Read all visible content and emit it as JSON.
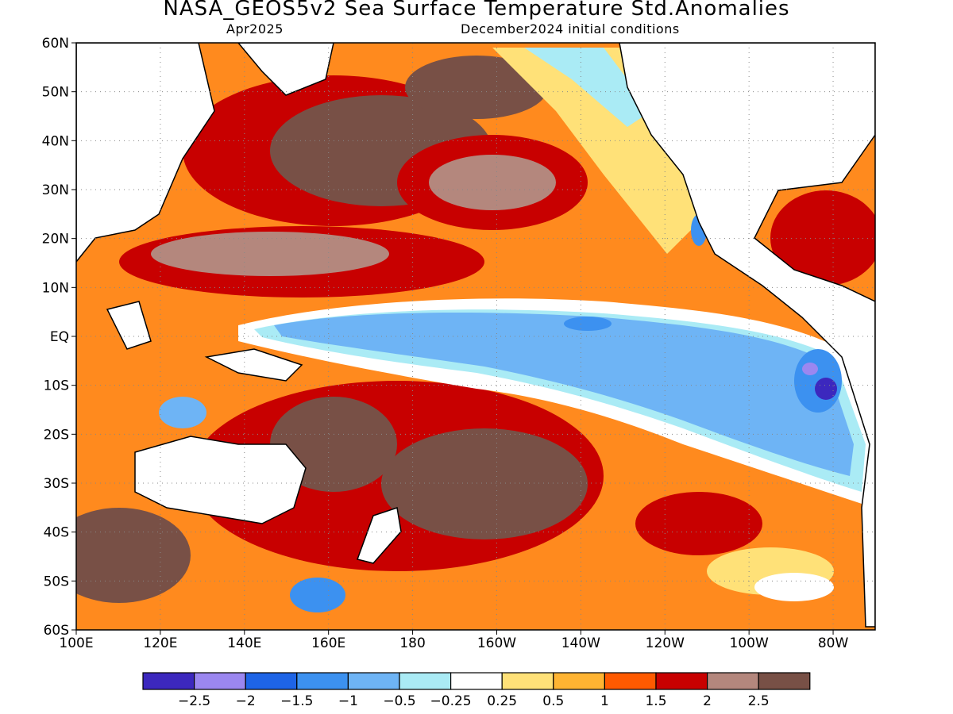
{
  "header": {
    "title": "NASA_GEOS5v2 Sea Surface Temperature Std.Anomalies",
    "forecast_month": "Apr2025",
    "init_conditions": "December2024 initial conditions"
  },
  "map": {
    "lat_range": [
      -60,
      60
    ],
    "lon_range_east": [
      100,
      290
    ],
    "lat_labels": [
      "60N",
      "50N",
      "40N",
      "30N",
      "20N",
      "10N",
      "EQ",
      "10S",
      "20S",
      "30S",
      "40S",
      "50S",
      "60S"
    ],
    "lon_labels": [
      "100E",
      "120E",
      "140E",
      "160E",
      "180",
      "160W",
      "140W",
      "120W",
      "100W",
      "80W"
    ],
    "grid": "dotted"
  },
  "colorbar": {
    "bins": [
      {
        "color": "#3c28be"
      },
      {
        "color": "#9b87f0"
      },
      {
        "color": "#1e64e6"
      },
      {
        "color": "#3c91f0"
      },
      {
        "color": "#6eb4f5"
      },
      {
        "color": "#aaebf5"
      },
      {
        "color": "#ffffff"
      },
      {
        "color": "#ffe178"
      },
      {
        "color": "#ffb432"
      },
      {
        "color": "#ff5a00"
      },
      {
        "color": "#c80000"
      },
      {
        "color": "#b4877d"
      },
      {
        "color": "#785046"
      }
    ],
    "labels": [
      "-2.5",
      "-2",
      "-1.5",
      "-1",
      "-0.5",
      "-0.25",
      "0.25",
      "0.5",
      "1",
      "1.5",
      "2",
      "2.5"
    ]
  }
}
